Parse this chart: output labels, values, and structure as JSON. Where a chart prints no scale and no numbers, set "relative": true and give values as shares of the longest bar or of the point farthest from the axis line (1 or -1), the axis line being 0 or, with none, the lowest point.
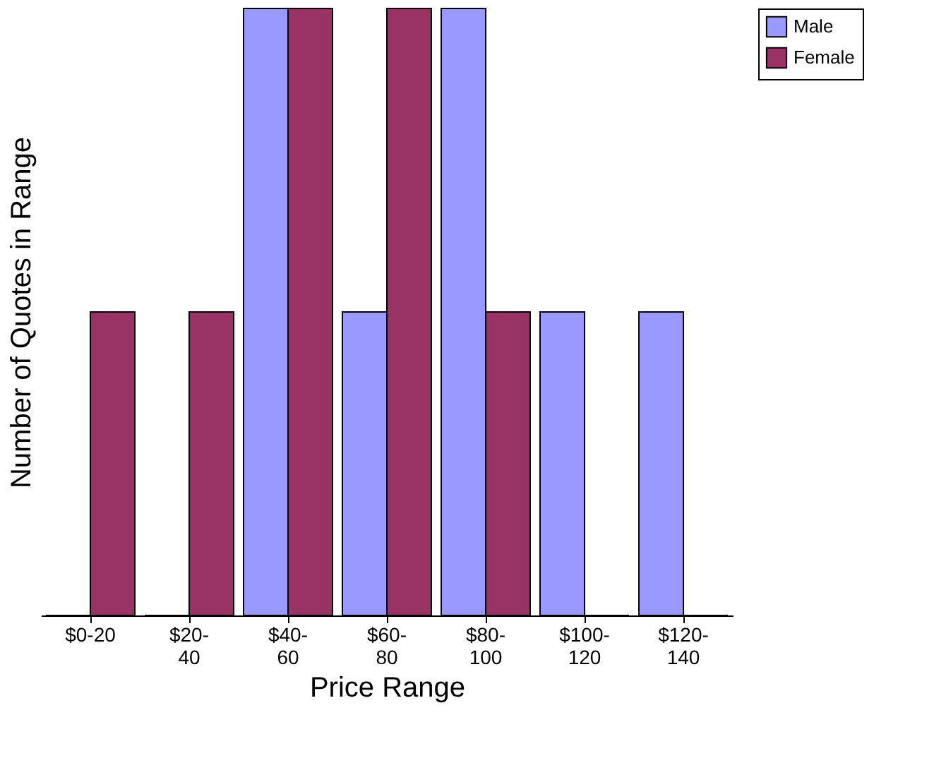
{
  "chart_data": {
    "type": "bar",
    "xlabel": "Price Range",
    "ylabel": "Number of Quotes in Range",
    "relative": true,
    "legend": "right",
    "grid": false,
    "categories": [
      "$0-20",
      "$20-40",
      "$40-60",
      "$60-80",
      "$80-100",
      "$100-120",
      "$120-140"
    ],
    "series": [
      {
        "name": "Male",
        "color": "#9999ff",
        "values": [
          0,
          0,
          1,
          0.5,
          1,
          0.5,
          0.5
        ]
      },
      {
        "name": "Female",
        "color": "#993366",
        "values": [
          0.5,
          0.5,
          1,
          1,
          0.5,
          0,
          0
        ]
      }
    ]
  }
}
